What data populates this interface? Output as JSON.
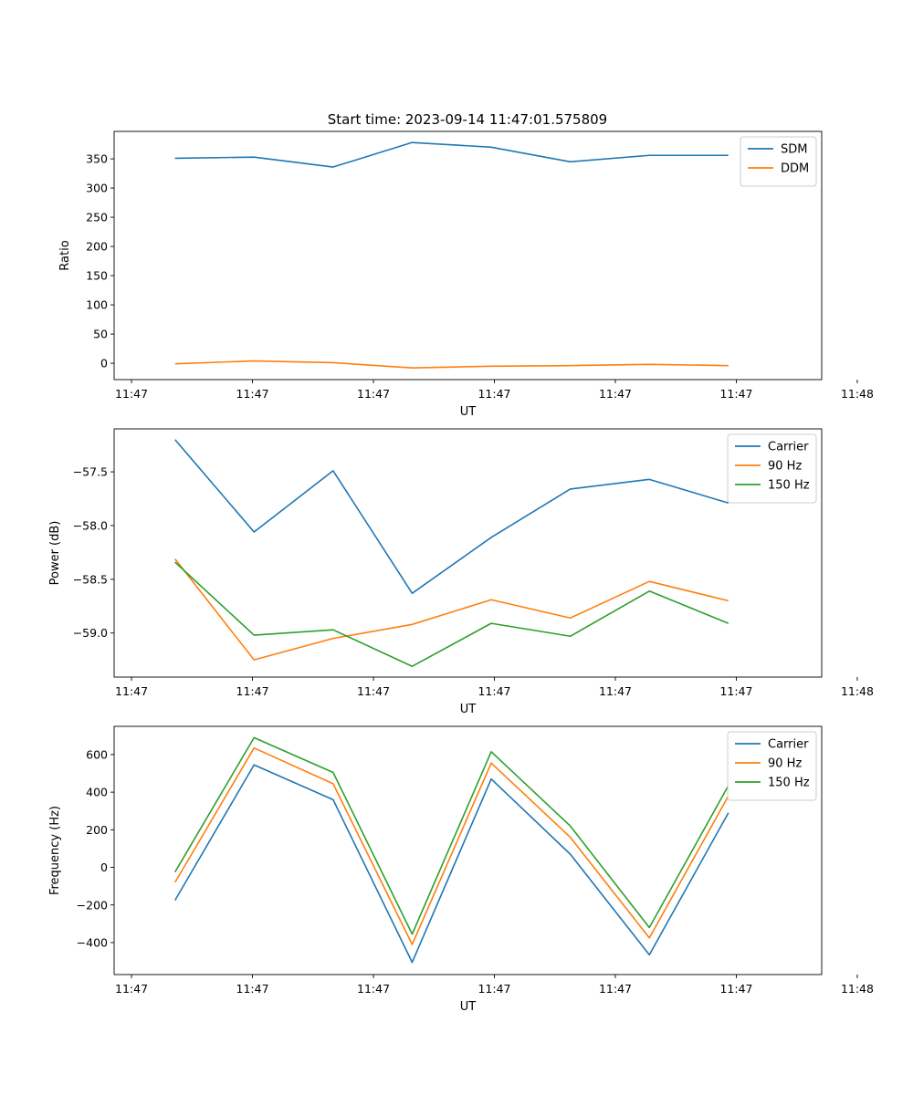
{
  "figure_title": "Start time: 2023-09-14 11:47:01.575809",
  "colors": {
    "c0": "#1f77b4",
    "c1": "#ff7f0e",
    "c2": "#2ca02c"
  },
  "chart_data": [
    {
      "type": "line",
      "title": "Start time: 2023-09-14 11:47:01.575809",
      "xlabel": "UT",
      "ylabel": "Ratio",
      "x": [
        1,
        2,
        3,
        4,
        5,
        6,
        7,
        8
      ],
      "xlim": [
        0.23,
        9.18
      ],
      "xticks": [
        0.45,
        1.98,
        3.51,
        5.04,
        6.57,
        8.1,
        9.63
      ],
      "xtick_labels": [
        "11:47",
        "11:47",
        "11:47",
        "11:47",
        "11:47",
        "11:47",
        "11:48"
      ],
      "ylim": [
        -28,
        397
      ],
      "yticks": [
        0,
        50,
        100,
        150,
        200,
        250,
        300,
        350
      ],
      "ytick_labels": [
        "0",
        "50",
        "100",
        "150",
        "200",
        "250",
        "300",
        "350"
      ],
      "legend_position": "top-right",
      "series": [
        {
          "name": "SDM",
          "color": "#1f77b4",
          "values": [
            351,
            353,
            336,
            378,
            370,
            345,
            356,
            356
          ]
        },
        {
          "name": "DDM",
          "color": "#ff7f0e",
          "values": [
            -1,
            4,
            1,
            -8,
            -5,
            -4,
            -2,
            -4
          ]
        }
      ]
    },
    {
      "type": "line",
      "title": "",
      "xlabel": "UT",
      "ylabel": "Power (dB)",
      "x": [
        1,
        2,
        3,
        4,
        5,
        6,
        7,
        8
      ],
      "xlim": [
        0.23,
        9.18
      ],
      "xticks": [
        0.45,
        1.98,
        3.51,
        5.04,
        6.57,
        8.1,
        9.63
      ],
      "xtick_labels": [
        "11:47",
        "11:47",
        "11:47",
        "11:47",
        "11:47",
        "11:47",
        "11:48"
      ],
      "ylim": [
        -59.41,
        -57.1
      ],
      "yticks": [
        -59.0,
        -58.5,
        -58.0,
        -57.5
      ],
      "ytick_labels": [
        "−59.0",
        "−58.5",
        "−58.0",
        "−57.5"
      ],
      "legend_position": "top-right",
      "series": [
        {
          "name": "Carrier",
          "color": "#1f77b4",
          "values": [
            -57.2,
            -58.06,
            -57.49,
            -58.63,
            -58.11,
            -57.66,
            -57.57,
            -57.79
          ]
        },
        {
          "name": "90 Hz",
          "color": "#ff7f0e",
          "values": [
            -58.31,
            -59.25,
            -59.05,
            -58.92,
            -58.69,
            -58.86,
            -58.52,
            -58.7
          ]
        },
        {
          "name": "150 Hz",
          "color": "#2ca02c",
          "values": [
            -58.34,
            -59.02,
            -58.97,
            -59.31,
            -58.91,
            -59.03,
            -58.61,
            -58.91
          ]
        }
      ]
    },
    {
      "type": "line",
      "title": "",
      "xlabel": "UT",
      "ylabel": "Frequency (Hz)",
      "x": [
        1,
        2,
        3,
        4,
        5,
        6,
        7,
        8
      ],
      "xlim": [
        0.23,
        9.18
      ],
      "xticks": [
        0.45,
        1.98,
        3.51,
        5.04,
        6.57,
        8.1,
        9.63
      ],
      "xtick_labels": [
        "11:47",
        "11:47",
        "11:47",
        "11:47",
        "11:47",
        "11:47",
        "11:48"
      ],
      "ylim": [
        -570,
        750
      ],
      "yticks": [
        -400,
        -200,
        0,
        200,
        400,
        600
      ],
      "ytick_labels": [
        "−400",
        "−200",
        "0",
        "200",
        "400",
        "600"
      ],
      "legend_position": "top-right",
      "series": [
        {
          "name": "Carrier",
          "color": "#1f77b4",
          "values": [
            -175,
            545,
            360,
            -505,
            470,
            70,
            -465,
            290
          ]
        },
        {
          "name": "90 Hz",
          "color": "#ff7f0e",
          "values": [
            -80,
            635,
            445,
            -410,
            555,
            160,
            -375,
            380
          ]
        },
        {
          "name": "150 Hz",
          "color": "#2ca02c",
          "values": [
            -25,
            690,
            505,
            -355,
            615,
            220,
            -320,
            435
          ]
        }
      ]
    }
  ]
}
